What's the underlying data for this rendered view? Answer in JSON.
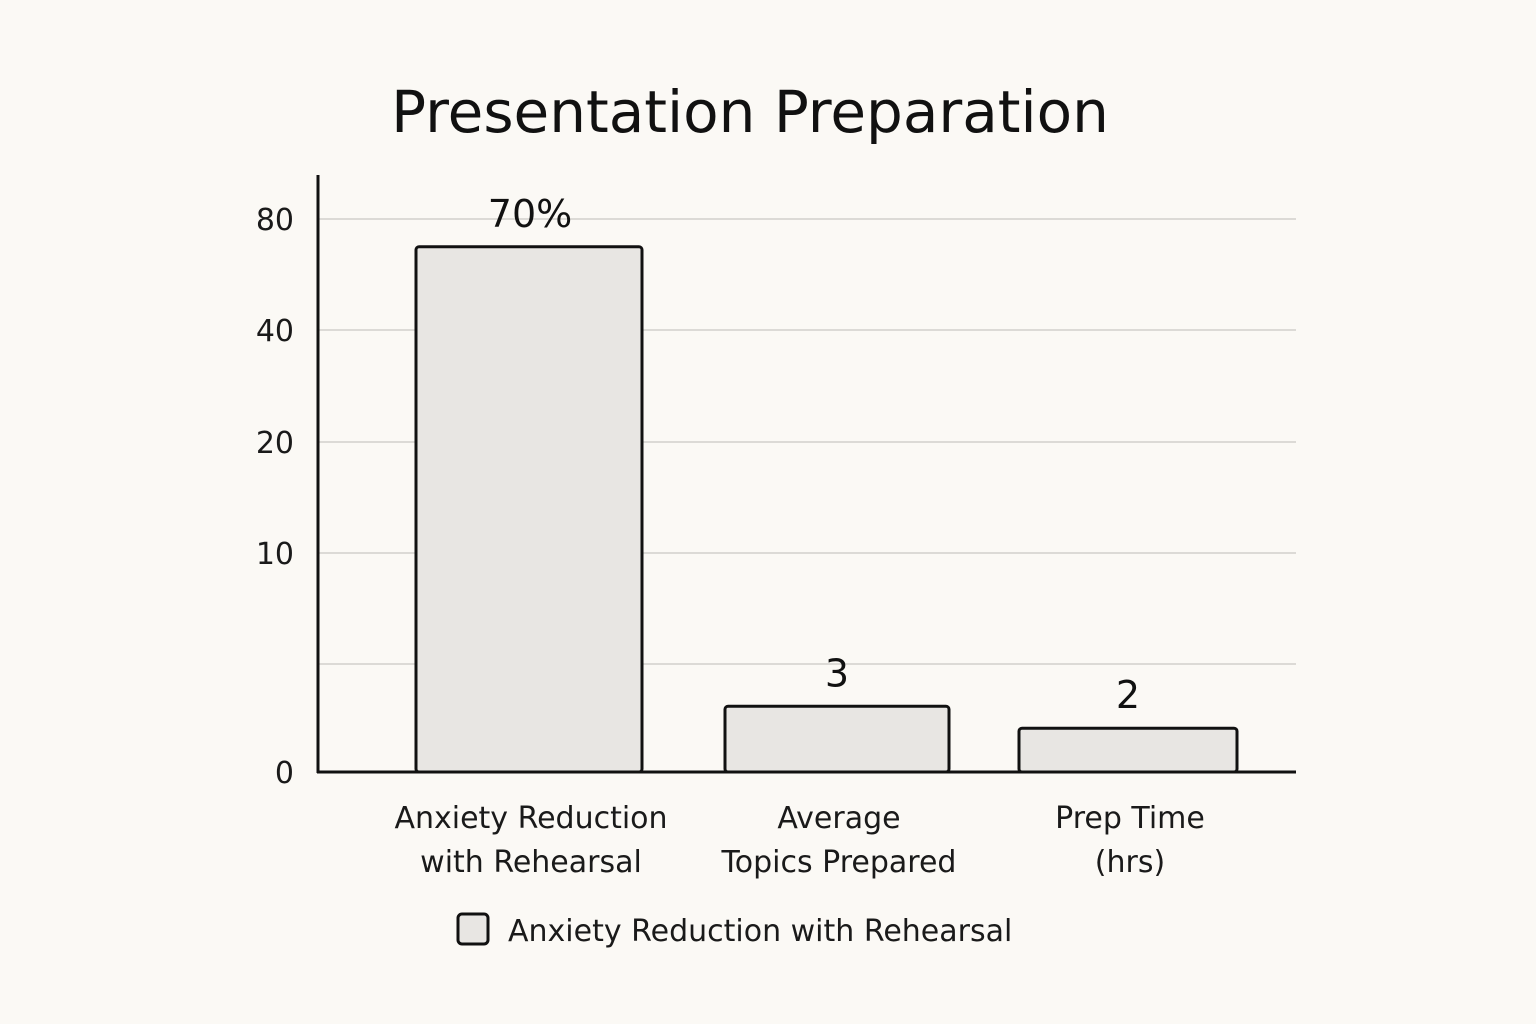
{
  "chart_data": {
    "type": "bar",
    "title": "Presentation Preparation",
    "categories": [
      [
        "Anxiety Reduction",
        "with Rehearsal"
      ],
      [
        "Average",
        "Topics Prepared"
      ],
      [
        "Prep Time",
        "(hrs)"
      ]
    ],
    "series": [
      {
        "name": "Anxiety Reduction with Rehearsal",
        "values": [
          70,
          3,
          2
        ],
        "data_labels": [
          "70%",
          "3",
          "2"
        ]
      }
    ],
    "y_ticks": [
      "0",
      "10",
      "20",
      "40",
      "80"
    ],
    "xlabel": "",
    "ylabel": "",
    "grid": true,
    "legend": "bottom-center",
    "colors": {
      "bar_fill": "#e8e6e3",
      "bar_stroke": "#111111",
      "grid": "#dcdad6",
      "axis": "#111111",
      "background": "#fbf9f5"
    }
  }
}
